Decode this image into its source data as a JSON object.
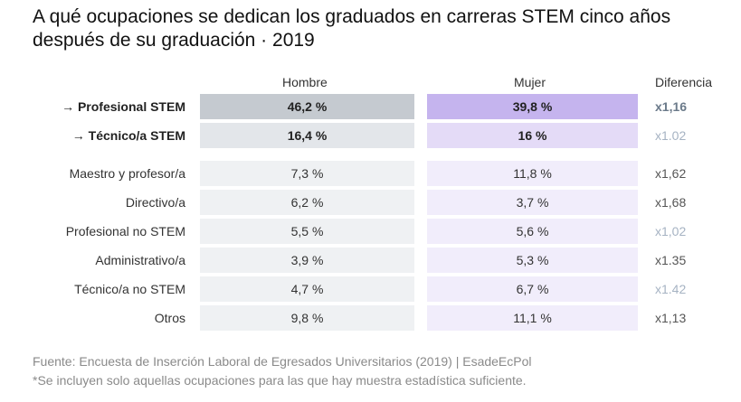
{
  "title": "A qué ocupaciones se dedican los graduados en carreras STEM cinco años después de su graduación · 2019",
  "chart_data": {
    "type": "table",
    "columns": [
      "Hombre",
      "Mujer",
      "Diferencia"
    ],
    "rows": [
      {
        "label": "→ Profesional STEM",
        "hombre": "46,2 %",
        "mujer": "39,8 %",
        "diferencia": "x1,16",
        "highlight": true
      },
      {
        "label": "→ Técnico/a STEM",
        "hombre": "16,4 %",
        "mujer": "16 %",
        "diferencia": "x1.02",
        "highlight": true
      },
      {
        "label": "Maestro y profesor/a",
        "hombre": "7,3 %",
        "mujer": "11,8 %",
        "diferencia": "x1,62",
        "highlight": false
      },
      {
        "label": "Directivo/a",
        "hombre": "6,2 %",
        "mujer": "3,7 %",
        "diferencia": "x1,68",
        "highlight": false
      },
      {
        "label": "Profesional no STEM",
        "hombre": "5,5 %",
        "mujer": "5,6 %",
        "diferencia": "x1,02",
        "highlight": false
      },
      {
        "label": "Administrativo/a",
        "hombre": "3,9 %",
        "mujer": "5,3 %",
        "diferencia": "x1.35",
        "highlight": false
      },
      {
        "label": "Técnico/a no STEM",
        "hombre": "4,7 %",
        "mujer": "6,7 %",
        "diferencia": "x1.42",
        "highlight": false
      },
      {
        "label": "Otros",
        "hombre": "9,8 %",
        "mujer": "11,1 %",
        "diferencia": "x1,13",
        "highlight": false
      }
    ]
  },
  "colors": {
    "hombre_strong": "#c5cad0",
    "hombre_mid": "#e3e6ea",
    "hombre_light": "#eff1f3",
    "mujer_strong": "#c5b4ee",
    "mujer_mid": "#e4dbf7",
    "mujer_light": "#f1edfb"
  },
  "footer": {
    "source": "Fuente: Encuesta de Inserción Laboral de Egresados Universitarios (2019) | EsadeEcPol",
    "note": "*Se incluyen solo aquellas ocupaciones para las que hay muestra estadística suficiente."
  }
}
